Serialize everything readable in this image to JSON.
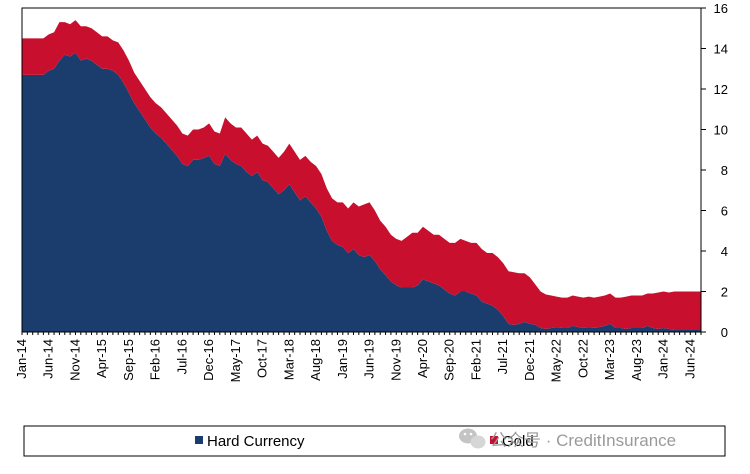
{
  "chart_data": {
    "type": "area",
    "stacked": true,
    "title": "",
    "xlabel": "",
    "ylabel": "",
    "ylim": [
      0,
      16
    ],
    "yticks": [
      "0",
      "2",
      "4",
      "6",
      "8",
      "10",
      "12",
      "14",
      "16"
    ],
    "y_axis_side": "right",
    "grid": false,
    "legend_position": "bottom",
    "x": [
      "Jan-14",
      "Feb-14",
      "Mar-14",
      "Apr-14",
      "May-14",
      "Jun-14",
      "Jul-14",
      "Aug-14",
      "Sep-14",
      "Oct-14",
      "Nov-14",
      "Dec-14",
      "Jan-15",
      "Feb-15",
      "Mar-15",
      "Apr-15",
      "May-15",
      "Jun-15",
      "Jul-15",
      "Aug-15",
      "Sep-15",
      "Oct-15",
      "Nov-15",
      "Dec-15",
      "Jan-16",
      "Feb-16",
      "Mar-16",
      "Apr-16",
      "May-16",
      "Jun-16",
      "Jul-16",
      "Aug-16",
      "Sep-16",
      "Oct-16",
      "Nov-16",
      "Dec-16",
      "Jan-17",
      "Feb-17",
      "Mar-17",
      "Apr-17",
      "May-17",
      "Jun-17",
      "Jul-17",
      "Aug-17",
      "Sep-17",
      "Oct-17",
      "Nov-17",
      "Dec-17",
      "Jan-18",
      "Feb-18",
      "Mar-18",
      "Apr-18",
      "May-18",
      "Jun-18",
      "Jul-18",
      "Aug-18",
      "Sep-18",
      "Oct-18",
      "Nov-18",
      "Dec-18",
      "Jan-19",
      "Feb-19",
      "Mar-19",
      "Apr-19",
      "May-19",
      "Jun-19",
      "Jul-19",
      "Aug-19",
      "Sep-19",
      "Oct-19",
      "Nov-19",
      "Dec-19",
      "Jan-20",
      "Feb-20",
      "Mar-20",
      "Apr-20",
      "May-20",
      "Jun-20",
      "Jul-20",
      "Aug-20",
      "Sep-20",
      "Oct-20",
      "Nov-20",
      "Dec-20",
      "Jan-21",
      "Feb-21",
      "Mar-21",
      "Apr-21",
      "May-21",
      "Jun-21",
      "Jul-21",
      "Aug-21",
      "Sep-21",
      "Oct-21",
      "Nov-21",
      "Dec-21",
      "Jan-22",
      "Feb-22",
      "Mar-22",
      "Apr-22",
      "May-22",
      "Jun-22",
      "Jul-22",
      "Aug-22",
      "Sep-22",
      "Oct-22",
      "Nov-22",
      "Dec-22",
      "Jan-23",
      "Feb-23",
      "Mar-23",
      "Apr-23",
      "May-23",
      "Jun-23",
      "Jul-23",
      "Aug-23",
      "Sep-23",
      "Oct-23",
      "Nov-23",
      "Dec-23",
      "Jan-24",
      "Feb-24",
      "Mar-24",
      "Apr-24",
      "May-24",
      "Jun-24",
      "Jul-24",
      "Aug-24"
    ],
    "xtick_labels": [
      "Jan-14",
      "Jun-14",
      "Nov-14",
      "Apr-15",
      "Sep-15",
      "Feb-16",
      "Jul-16",
      "Dec-16",
      "May-17",
      "Oct-17",
      "Mar-18",
      "Aug-18",
      "Jan-19",
      "Jun-19",
      "Nov-19",
      "Apr-20",
      "Sep-20",
      "Feb-21",
      "Jul-21",
      "Dec-21",
      "May-22",
      "Oct-22",
      "Mar-23",
      "Aug-23",
      "Jan-24",
      "Jun-24"
    ],
    "series": [
      {
        "name": "Hard Currency",
        "color": "#1a3d6e",
        "values": [
          12.7,
          12.7,
          12.7,
          12.7,
          12.7,
          12.9,
          13.0,
          13.4,
          13.7,
          13.6,
          13.8,
          13.4,
          13.5,
          13.4,
          13.2,
          13.0,
          13.0,
          12.9,
          12.7,
          12.3,
          11.8,
          11.3,
          10.9,
          10.5,
          10.1,
          9.8,
          9.6,
          9.3,
          9.0,
          8.7,
          8.3,
          8.2,
          8.5,
          8.5,
          8.6,
          8.7,
          8.3,
          8.2,
          8.8,
          8.5,
          8.3,
          8.2,
          7.9,
          7.7,
          7.9,
          7.5,
          7.4,
          7.1,
          6.8,
          7.0,
          7.3,
          6.9,
          6.5,
          6.7,
          6.4,
          6.1,
          5.7,
          5.0,
          4.5,
          4.3,
          4.2,
          3.9,
          4.1,
          3.8,
          3.7,
          3.8,
          3.5,
          3.1,
          2.8,
          2.5,
          2.3,
          2.2,
          2.2,
          2.2,
          2.3,
          2.6,
          2.5,
          2.4,
          2.3,
          2.1,
          1.9,
          1.8,
          2.0,
          2.0,
          1.9,
          1.8,
          1.5,
          1.4,
          1.3,
          1.1,
          0.8,
          0.4,
          0.35,
          0.4,
          0.5,
          0.4,
          0.35,
          0.2,
          0.15,
          0.2,
          0.25,
          0.2,
          0.2,
          0.3,
          0.25,
          0.2,
          0.25,
          0.2,
          0.25,
          0.3,
          0.4,
          0.2,
          0.2,
          0.15,
          0.2,
          0.2,
          0.2,
          0.3,
          0.2,
          0.15,
          0.2,
          0.15,
          0.1,
          0.1,
          0.1,
          0.1,
          0.1,
          0.1
        ]
      },
      {
        "name": "Gold",
        "color": "#c8102e",
        "values": [
          1.8,
          1.8,
          1.8,
          1.8,
          1.8,
          1.8,
          1.8,
          1.9,
          1.6,
          1.6,
          1.6,
          1.7,
          1.6,
          1.6,
          1.6,
          1.6,
          1.6,
          1.5,
          1.6,
          1.6,
          1.6,
          1.5,
          1.5,
          1.5,
          1.5,
          1.5,
          1.5,
          1.5,
          1.5,
          1.5,
          1.5,
          1.5,
          1.5,
          1.5,
          1.5,
          1.6,
          1.6,
          1.6,
          1.8,
          1.8,
          1.8,
          1.9,
          1.9,
          1.8,
          1.8,
          1.8,
          1.8,
          1.8,
          1.8,
          1.9,
          2.0,
          2.0,
          2.0,
          2.0,
          2.0,
          2.1,
          2.1,
          2.1,
          2.1,
          2.1,
          2.2,
          2.2,
          2.3,
          2.4,
          2.6,
          2.6,
          2.5,
          2.4,
          2.4,
          2.3,
          2.3,
          2.3,
          2.5,
          2.7,
          2.6,
          2.6,
          2.5,
          2.4,
          2.5,
          2.5,
          2.5,
          2.6,
          2.6,
          2.5,
          2.5,
          2.6,
          2.6,
          2.5,
          2.6,
          2.6,
          2.6,
          2.6,
          2.6,
          2.5,
          2.4,
          2.3,
          2.0,
          1.8,
          1.7,
          1.6,
          1.5,
          1.5,
          1.5,
          1.5,
          1.5,
          1.5,
          1.5,
          1.5,
          1.5,
          1.5,
          1.5,
          1.5,
          1.5,
          1.6,
          1.6,
          1.6,
          1.6,
          1.6,
          1.7,
          1.8,
          1.8,
          1.8,
          1.9,
          1.9,
          1.9,
          1.9,
          1.9,
          1.9
        ]
      }
    ],
    "legend": [
      {
        "label": "Hard Currency",
        "color": "#1a3d6e"
      },
      {
        "label": "Gold",
        "color": "#c8102e"
      }
    ],
    "watermark": "公众号 · CreditInsurance"
  }
}
